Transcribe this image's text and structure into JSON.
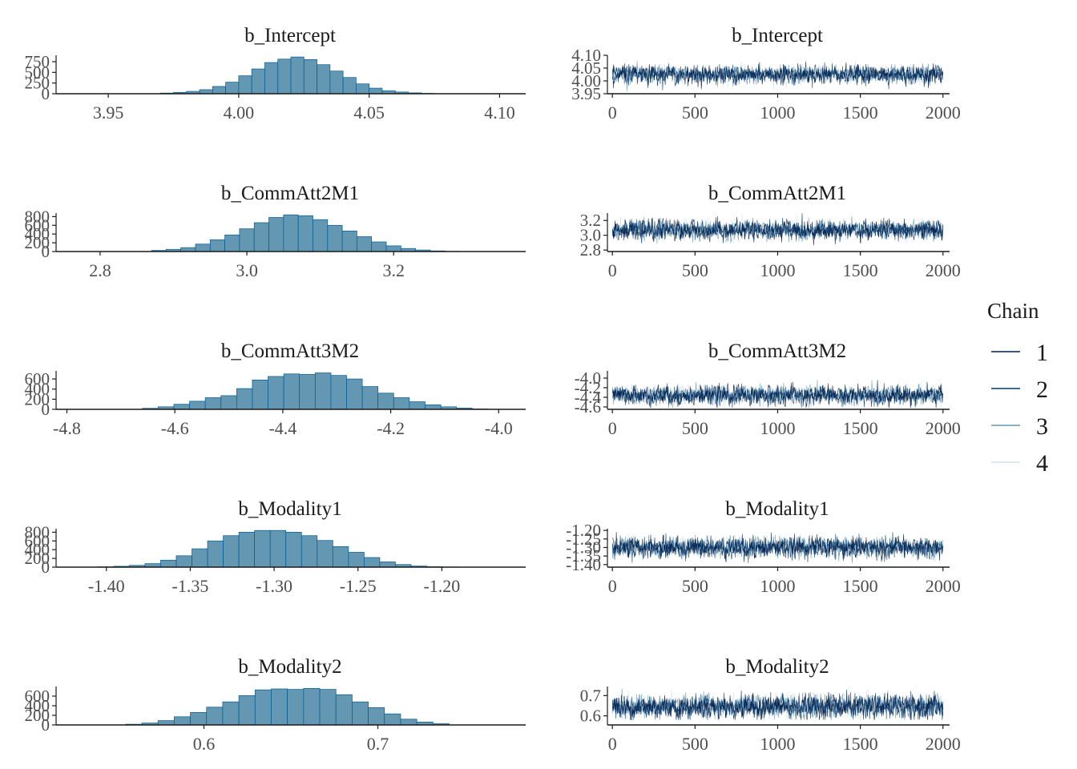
{
  "chart_data": {
    "type": "mcmc_hist_trace",
    "params": [
      {
        "name": "b_Intercept",
        "hist": {
          "xlim": [
            3.93,
            4.11
          ],
          "xticks": [
            "3.95",
            "4.00",
            "4.05",
            "4.10"
          ],
          "xtick_values": [
            3.95,
            4.0,
            4.05,
            4.1
          ],
          "bins": [
            3.97,
            4.08
          ],
          "counts": [
            15,
            30,
            55,
            95,
            170,
            270,
            420,
            580,
            730,
            810,
            860,
            800,
            680,
            530,
            380,
            230,
            130,
            70,
            40,
            20,
            8,
            3
          ],
          "ylim": [
            0,
            900
          ],
          "yticks": [
            "0",
            "250",
            "500",
            "750"
          ],
          "ytick_values": [
            0,
            250,
            500,
            750
          ]
        },
        "trace": {
          "ylim": [
            3.95,
            4.1
          ],
          "yticks": [
            "3.95",
            "4.00",
            "4.05",
            "4.10"
          ],
          "ytick_values": [
            3.95,
            4.0,
            4.05,
            4.1
          ],
          "center": 4.025,
          "spread": 0.016,
          "plot_range": [
            3.955,
            4.095
          ]
        }
      },
      {
        "name": "b_CommAtt2M1",
        "hist": {
          "xlim": [
            2.74,
            3.38
          ],
          "xticks": [
            "2.8",
            "3.0",
            "3.2"
          ],
          "xtick_values": [
            2.8,
            3.0,
            3.2
          ],
          "bins": [
            2.87,
            3.29
          ],
          "counts": [
            25,
            50,
            90,
            170,
            270,
            380,
            520,
            660,
            780,
            840,
            820,
            730,
            600,
            470,
            340,
            220,
            130,
            70,
            35,
            15,
            5
          ],
          "ylim": [
            0,
            880
          ],
          "yticks": [
            "0",
            "200",
            "400",
            "600",
            "800"
          ],
          "ytick_values": [
            0,
            200,
            400,
            600,
            800
          ]
        },
        "trace": {
          "ylim": [
            2.78,
            3.3
          ],
          "yticks": [
            "2.8",
            "3.0",
            "3.2"
          ],
          "ytick_values": [
            2.8,
            3.0,
            3.2
          ],
          "center": 3.07,
          "spread": 0.06,
          "plot_range": [
            2.86,
            3.3
          ]
        }
      },
      {
        "name": "b_CommAtt3M2",
        "hist": {
          "xlim": [
            -4.82,
            -3.95
          ],
          "xticks": [
            "-4.8",
            "-4.6",
            "-4.4",
            "-4.2",
            "-4.0"
          ],
          "xtick_values": [
            -4.8,
            -4.6,
            -4.4,
            -4.2,
            -4.0
          ],
          "bins": [
            -4.66,
            -4.02
          ],
          "counts": [
            20,
            50,
            100,
            160,
            230,
            270,
            410,
            580,
            650,
            700,
            690,
            720,
            670,
            600,
            450,
            320,
            230,
            150,
            90,
            50,
            25,
            8
          ],
          "ylim": [
            0,
            760
          ],
          "yticks": [
            "0",
            "200",
            "400",
            "600"
          ],
          "ytick_values": [
            0,
            200,
            400,
            600
          ]
        },
        "trace": {
          "ylim": [
            -4.65,
            -3.85
          ],
          "yticks": [
            "-4.6",
            "-4.4",
            "-4.2",
            "-4.0"
          ],
          "ytick_values": [
            -4.6,
            -4.4,
            -4.2,
            -4.0
          ],
          "center": -4.36,
          "spread": 0.09,
          "plot_range": [
            -4.62,
            -4.04
          ]
        }
      },
      {
        "name": "b_Modality1",
        "hist": {
          "xlim": [
            -1.43,
            -1.15
          ],
          "xticks": [
            "-1.40",
            "-1.35",
            "-1.30",
            "-1.25",
            "-1.20"
          ],
          "xtick_values": [
            -1.4,
            -1.35,
            -1.3,
            -1.25,
            -1.2
          ],
          "bins": [
            -1.405,
            -1.181
          ],
          "counts": [
            8,
            20,
            40,
            80,
            160,
            260,
            420,
            600,
            720,
            800,
            840,
            840,
            800,
            720,
            610,
            470,
            340,
            220,
            120,
            60,
            25,
            10,
            4,
            2
          ],
          "ylim": [
            0,
            880
          ],
          "yticks": [
            "0",
            "200",
            "400",
            "600",
            "800"
          ],
          "ytick_values": [
            0,
            200,
            400,
            600,
            800
          ]
        },
        "trace": {
          "ylim": [
            -1.415,
            -1.19
          ],
          "yticks": [
            "-1.40",
            "-1.35",
            "-1.30",
            "-1.25",
            "-1.20"
          ],
          "ytick_values": [
            -1.4,
            -1.35,
            -1.3,
            -1.25,
            -1.2
          ],
          "center": -1.3,
          "spread": 0.028,
          "plot_range": [
            -1.39,
            -1.21
          ]
        }
      },
      {
        "name": "b_Modality2",
        "hist": {
          "xlim": [
            0.515,
            0.785
          ],
          "xticks": [
            "0.6",
            "0.7"
          ],
          "xtick_values": [
            0.6,
            0.7
          ],
          "bins": [
            0.555,
            0.741
          ],
          "counts": [
            15,
            40,
            90,
            170,
            260,
            370,
            480,
            610,
            730,
            750,
            740,
            760,
            740,
            630,
            480,
            360,
            230,
            120,
            60,
            25
          ],
          "ylim": [
            0,
            800
          ],
          "yticks": [
            "0",
            "200",
            "400",
            "600"
          ],
          "ytick_values": [
            0,
            200,
            400,
            600
          ]
        },
        "trace": {
          "ylim": [
            0.555,
            0.745
          ],
          "yticks": [
            "0.6",
            "0.7"
          ],
          "ytick_values": [
            0.6,
            0.7
          ],
          "center": 0.645,
          "spread": 0.027,
          "plot_range": [
            0.58,
            0.735
          ]
        }
      }
    ],
    "trace_x": {
      "xlim": [
        -30,
        2040
      ],
      "xticks": [
        "0",
        "500",
        "1000",
        "1500",
        "2000"
      ],
      "xtick_values": [
        0,
        500,
        1000,
        1500,
        2000
      ],
      "iterations": 2000
    },
    "legend": {
      "title": "Chain",
      "position": "right",
      "entries": [
        "1",
        "2",
        "3",
        "4"
      ]
    },
    "colors": {
      "hist_fill": "#6497b1",
      "hist_stroke": "#005b96",
      "axis": "#1a1a1a",
      "chains": [
        "#011f4b",
        "#03396c",
        "#6497b1",
        "#d1e1ec"
      ]
    }
  }
}
